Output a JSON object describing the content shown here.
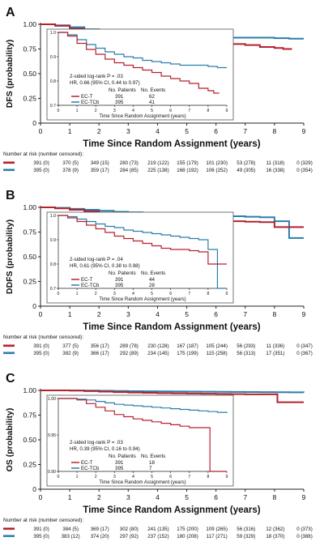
{
  "chart_data": [
    {
      "type": "line",
      "panel": "A",
      "ylabel": "DFS (probability)",
      "xlabel": "Time Since Random Assignment (years)",
      "xlim": [
        0,
        9
      ],
      "ylim": [
        0,
        1
      ],
      "xticks": [
        "0",
        "1",
        "2",
        "3",
        "4",
        "5",
        "6",
        "7",
        "8",
        "9"
      ],
      "yticks": [
        "0",
        "0.25",
        "0.50",
        "0.75",
        "1.00"
      ],
      "inset": {
        "xlim": [
          0,
          9
        ],
        "ylim": [
          0.7,
          1.0
        ],
        "xticks": [
          "0",
          "1",
          "2",
          "3",
          "4",
          "5",
          "6",
          "7",
          "8",
          "9"
        ],
        "yticks": [
          "0.7",
          "0.8",
          "0.9",
          "1.0"
        ],
        "xlabel": "Time Since Random Assignment (years)"
      },
      "stats": {
        "line1": "2-sided log-rank P = .03",
        "line2": "HR, 0.66 (95% CI, 0.44 to 0.97)",
        "header_patients": "No. Patients",
        "header_events": "No. Events"
      },
      "colors": {
        "EC-T": "#b5222e",
        "EC-TCb": "#2b7eaa"
      },
      "series": [
        {
          "name": "EC-T",
          "patients": "391",
          "events": "62",
          "x": [
            0,
            0.5,
            1,
            1.5,
            2,
            2.5,
            3,
            3.5,
            4,
            4.5,
            5,
            5.5,
            6,
            6.5,
            7,
            7.5,
            8,
            8.3,
            8.6
          ],
          "y": [
            1.0,
            0.985,
            0.955,
            0.93,
            0.91,
            0.89,
            0.875,
            0.865,
            0.855,
            0.845,
            0.835,
            0.82,
            0.81,
            0.8,
            0.79,
            0.77,
            0.76,
            0.75,
            0.75
          ]
        },
        {
          "name": "EC-TCb",
          "patients": "395",
          "events": "41",
          "x": [
            0,
            0.5,
            1,
            1.5,
            2,
            2.5,
            3,
            3.5,
            4,
            4.5,
            5,
            5.5,
            6,
            6.5,
            7,
            7.5,
            8,
            8.5,
            9
          ],
          "y": [
            1.0,
            0.99,
            0.97,
            0.95,
            0.935,
            0.92,
            0.91,
            0.9,
            0.895,
            0.885,
            0.88,
            0.875,
            0.87,
            0.865,
            0.865,
            0.865,
            0.86,
            0.855,
            0.855
          ]
        }
      ],
      "risk": {
        "title": "Number at risk (number censored):",
        "rows": [
          {
            "name": "EC-T",
            "values": [
              "391 (0)",
              "370 (5)",
              "349 (15)",
              "280 (73)",
              "219 (122)",
              "155 (179)",
              "101 (230)",
              "53 (278)",
              "11 (318)",
              "0 (329)"
            ]
          },
          {
            "name": "EC-TCb",
            "values": [
              "395 (0)",
              "378 (9)",
              "359 (17)",
              "284 (85)",
              "225 (138)",
              "168 (192)",
              "106 (252)",
              "49 (305)",
              "16 (338)",
              "0 (354)"
            ]
          }
        ]
      }
    },
    {
      "type": "line",
      "panel": "B",
      "ylabel": "DDFS (probability)",
      "xlabel": "Time Since Random Assignment (years)",
      "xlim": [
        0,
        9
      ],
      "ylim": [
        0,
        1
      ],
      "xticks": [
        "0",
        "1",
        "2",
        "3",
        "4",
        "5",
        "6",
        "7",
        "8",
        "9"
      ],
      "yticks": [
        "0",
        "0.25",
        "0.50",
        "0.75",
        "1.00"
      ],
      "inset": {
        "xlim": [
          0,
          9
        ],
        "ylim": [
          0.7,
          1.0
        ],
        "xticks": [
          "0",
          "1",
          "2",
          "3",
          "4",
          "5",
          "6",
          "7",
          "8",
          "9"
        ],
        "yticks": [
          "0.7",
          "0.8",
          "0.9",
          "1.0"
        ],
        "xlabel": "Time Since Random Assignment (years)"
      },
      "stats": {
        "line1": "2-sided log-rank P = .04",
        "line2": "HR, 0.61 (95% CI, 0.38 to 0.98)",
        "header_patients": "No. Patients",
        "header_events": "No. Events"
      },
      "colors": {
        "EC-T": "#b5222e",
        "EC-TCb": "#2b7eaa"
      },
      "series": [
        {
          "name": "EC-T",
          "patients": "391",
          "events": "44",
          "x": [
            0,
            0.5,
            1,
            1.5,
            2,
            2.5,
            3,
            3.5,
            4,
            4.5,
            5,
            5.5,
            6,
            6.5,
            7,
            7.5,
            8,
            8.5,
            9
          ],
          "y": [
            1.0,
            0.99,
            0.975,
            0.96,
            0.945,
            0.93,
            0.915,
            0.905,
            0.895,
            0.885,
            0.875,
            0.865,
            0.86,
            0.86,
            0.855,
            0.85,
            0.8,
            0.8,
            0.8
          ]
        },
        {
          "name": "EC-TCb",
          "patients": "395",
          "events": "28",
          "x": [
            0,
            0.5,
            1,
            1.5,
            2,
            2.5,
            3,
            3.5,
            4,
            4.5,
            5,
            5.5,
            6,
            6.5,
            7,
            7.5,
            8,
            8.5,
            9
          ],
          "y": [
            1.0,
            0.995,
            0.985,
            0.975,
            0.965,
            0.955,
            0.95,
            0.94,
            0.935,
            0.93,
            0.925,
            0.92,
            0.915,
            0.91,
            0.905,
            0.9,
            0.86,
            0.69,
            0.69
          ]
        }
      ],
      "risk": {
        "title": "Number at risk (number censored):",
        "rows": [
          {
            "name": "EC-T",
            "values": [
              "391 (0)",
              "377 (5)",
              "356 (17)",
              "289 (78)",
              "230 (128)",
              "167 (187)",
              "105 (244)",
              "56 (293)",
              "11 (336)",
              "0 (347)"
            ]
          },
          {
            "name": "EC-TCb",
            "values": [
              "395 (0)",
              "382 (9)",
              "366 (17)",
              "292 (89)",
              "234 (145)",
              "175 (199)",
              "115 (258)",
              "56 (313)",
              "17 (351)",
              "0 (367)"
            ]
          }
        ]
      }
    },
    {
      "type": "line",
      "panel": "C",
      "ylabel": "OS (probability)",
      "xlabel": "Time Since Random Assignment (years)",
      "xlim": [
        0,
        9
      ],
      "ylim": [
        0,
        1
      ],
      "xticks": [
        "0",
        "1",
        "2",
        "3",
        "4",
        "5",
        "6",
        "7",
        "8",
        "9"
      ],
      "yticks": [
        "0",
        "0.25",
        "0.50",
        "0.75",
        "1.00"
      ],
      "inset": {
        "xlim": [
          0,
          9
        ],
        "ylim": [
          0.9,
          1.0
        ],
        "xticks": [
          "0",
          "1",
          "2",
          "3",
          "4",
          "5",
          "6",
          "7",
          "8",
          "9"
        ],
        "yticks": [
          "0.90",
          "0.95",
          "1.00"
        ],
        "xlabel": "Time Since Random Assignment (years)"
      },
      "stats": {
        "line1": "2-sided log-rank P = .03",
        "line2": "HR, 0.39 (95% CI, 0.16 to 0.94)",
        "header_patients": "No. Patients",
        "header_events": "No. Events"
      },
      "colors": {
        "EC-T": "#b5222e",
        "EC-TCb": "#2b7eaa"
      },
      "series": [
        {
          "name": "EC-T",
          "patients": "391",
          "events": "18",
          "x": [
            0,
            0.5,
            1,
            1.5,
            2,
            2.5,
            3,
            3.5,
            4,
            4.5,
            5,
            5.5,
            6,
            6.5,
            7,
            7.5,
            8,
            8.1,
            8.5,
            9
          ],
          "y": [
            1.0,
            1.0,
            0.998,
            0.993,
            0.988,
            0.983,
            0.978,
            0.975,
            0.972,
            0.97,
            0.968,
            0.966,
            0.964,
            0.962,
            0.96,
            0.96,
            0.96,
            0.88,
            0.88,
            0.88
          ]
        },
        {
          "name": "EC-TCb",
          "patients": "395",
          "events": "7",
          "x": [
            0,
            0.5,
            1,
            1.5,
            2,
            2.5,
            3,
            3.5,
            4,
            4.5,
            5,
            5.5,
            6,
            6.5,
            7,
            7.5,
            8,
            8.5,
            9
          ],
          "y": [
            1.0,
            1.0,
            0.999,
            0.998,
            0.996,
            0.994,
            0.992,
            0.991,
            0.99,
            0.989,
            0.988,
            0.987,
            0.986,
            0.985,
            0.984,
            0.983,
            0.982,
            0.981,
            0.98
          ]
        }
      ],
      "risk": {
        "title": "Number at risk (number censored):",
        "rows": [
          {
            "name": "EC-T",
            "values": [
              "391 (0)",
              "384 (5)",
              "369 (17)",
              "302 (80)",
              "241 (135)",
              "175 (200)",
              "109 (265)",
              "56 (316)",
              "12 (362)",
              "0 (373)"
            ]
          },
          {
            "name": "EC-TCb",
            "values": [
              "395 (0)",
              "383 (12)",
              "374 (20)",
              "297 (92)",
              "237 (152)",
              "180 (208)",
              "117 (271)",
              "59 (329)",
              "18 (370)",
              "0 (388)"
            ]
          }
        ]
      }
    }
  ]
}
